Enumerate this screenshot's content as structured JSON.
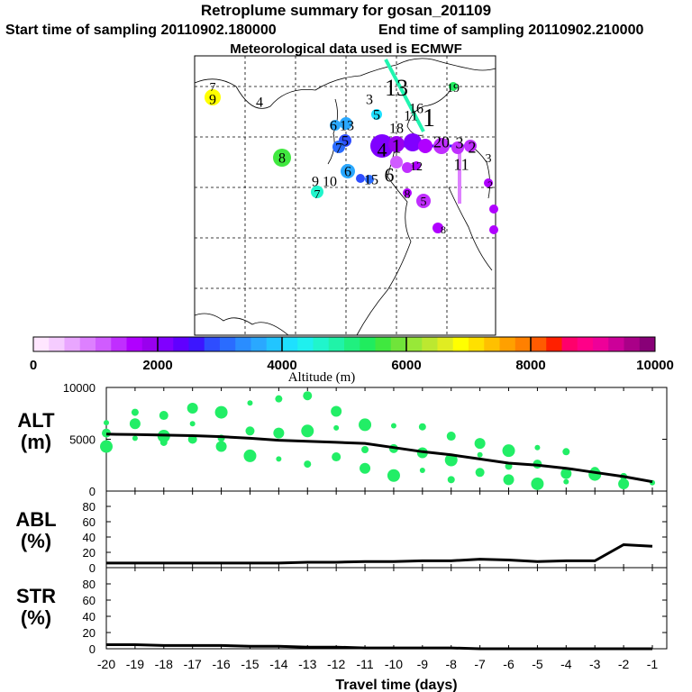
{
  "header": {
    "title": "Retroplume summary for gosan_201109",
    "start_time": "Start time of sampling 20110902.180000",
    "end_time": "End time of sampling 20110902.210000",
    "met_data": "Meteorological data used is ECMWF"
  },
  "colorbar": {
    "label": "Altitude (m)",
    "ticks": [
      "0",
      "2000",
      "4000",
      "6000",
      "8000",
      "10000"
    ],
    "colors": [
      "#ffe6ff",
      "#f5ccff",
      "#e9a6ff",
      "#dd80ff",
      "#d05cff",
      "#c02eff",
      "#b000ff",
      "#9900ee",
      "#8000ff",
      "#6000ff",
      "#3c16ff",
      "#2e4dff",
      "#2a6cff",
      "#2a8dff",
      "#2aa8ff",
      "#22c5ff",
      "#1ee0ff",
      "#1ff0ee",
      "#20f5cc",
      "#20f3a8",
      "#20f07f",
      "#20ec5e",
      "#40e83f",
      "#70e43a",
      "#98e838",
      "#bce830",
      "#e0ec22",
      "#ffff00",
      "#ffe000",
      "#ffc000",
      "#ffa000",
      "#ff8000",
      "#ff5b00",
      "#ff2000",
      "#ff006b",
      "#ff0088",
      "#ee0099",
      "#cc0099",
      "#aa0088",
      "#880077"
    ]
  },
  "map": {
    "labels": [
      {
        "text": "7",
        "color": "#000000"
      },
      {
        "text": "9",
        "color": "#000000"
      },
      {
        "text": "4",
        "color": "#000000"
      },
      {
        "text": "3",
        "color": "#000000"
      },
      {
        "text": "5",
        "color": "#000000"
      },
      {
        "text": "13",
        "color": "#000000"
      },
      {
        "text": "16",
        "color": "#000000"
      },
      {
        "text": "1",
        "color": "#000000"
      },
      {
        "text": "19",
        "color": "#000000"
      },
      {
        "text": "6",
        "color": "#000000"
      },
      {
        "text": "13",
        "color": "#000000"
      },
      {
        "text": "18",
        "color": "#000000"
      },
      {
        "text": "11",
        "color": "#000000"
      },
      {
        "text": "5",
        "color": "#000000"
      },
      {
        "text": "7",
        "color": "#000000"
      },
      {
        "text": "4",
        "color": "#000000"
      },
      {
        "text": "1",
        "color": "#000000"
      },
      {
        "text": "20",
        "color": "#000000"
      },
      {
        "text": "3",
        "color": "#000000"
      },
      {
        "text": "2",
        "color": "#000000"
      },
      {
        "text": "8",
        "color": "#000000"
      },
      {
        "text": "6",
        "color": "#000000"
      },
      {
        "text": "3",
        "color": "#000000"
      },
      {
        "text": "11",
        "color": "#000000"
      },
      {
        "text": "12",
        "color": "#000000"
      },
      {
        "text": "8",
        "color": "#000000"
      },
      {
        "text": "9",
        "color": "#000000"
      },
      {
        "text": "10",
        "color": "#000000"
      },
      {
        "text": "15",
        "color": "#000000"
      },
      {
        "text": "6",
        "color": "#000000"
      },
      {
        "text": "8",
        "color": "#000000"
      },
      {
        "text": "5",
        "color": "#000000"
      },
      {
        "text": "7",
        "color": "#000000"
      },
      {
        "text": "2",
        "color": "#000000"
      }
    ]
  },
  "chart_data": [
    {
      "type": "scatter",
      "panel": "ALT",
      "ylabel": "ALT\n(m)",
      "ylim": [
        0,
        10000
      ],
      "yticks": [
        "0",
        "5000",
        "10000"
      ],
      "xlim": [
        -20,
        -1
      ],
      "median_line": {
        "x": [
          -20,
          -19,
          -18,
          -17,
          -16,
          -15,
          -14,
          -13,
          -12,
          -11,
          -10,
          -9,
          -8,
          -7,
          -6,
          -5,
          -4,
          -3,
          -2,
          -1
        ],
        "y": [
          5500,
          5450,
          5400,
          5350,
          5250,
          5100,
          4900,
          4800,
          4700,
          4600,
          4200,
          3800,
          3500,
          3100,
          2700,
          2500,
          2200,
          1800,
          1400,
          900
        ]
      },
      "points": [
        {
          "x": -20,
          "y": 6600
        },
        {
          "x": -20,
          "y": 5600
        },
        {
          "x": -20,
          "y": 4300
        },
        {
          "x": -19,
          "y": 7600
        },
        {
          "x": -19,
          "y": 6500
        },
        {
          "x": -19,
          "y": 5100
        },
        {
          "x": -18,
          "y": 7300
        },
        {
          "x": -18,
          "y": 5300
        },
        {
          "x": -18,
          "y": 4700
        },
        {
          "x": -17,
          "y": 8000
        },
        {
          "x": -17,
          "y": 6500
        },
        {
          "x": -17,
          "y": 5000
        },
        {
          "x": -16,
          "y": 7600
        },
        {
          "x": -16,
          "y": 5100
        },
        {
          "x": -16,
          "y": 4300
        },
        {
          "x": -15,
          "y": 8500
        },
        {
          "x": -15,
          "y": 5800
        },
        {
          "x": -15,
          "y": 3400
        },
        {
          "x": -14,
          "y": 8900
        },
        {
          "x": -14,
          "y": 5600
        },
        {
          "x": -14,
          "y": 3100
        },
        {
          "x": -13,
          "y": 9200
        },
        {
          "x": -13,
          "y": 5800
        },
        {
          "x": -13,
          "y": 2600
        },
        {
          "x": -12,
          "y": 7700
        },
        {
          "x": -12,
          "y": 6100
        },
        {
          "x": -12,
          "y": 3300
        },
        {
          "x": -11,
          "y": 6400
        },
        {
          "x": -11,
          "y": 4000
        },
        {
          "x": -11,
          "y": 2200
        },
        {
          "x": -10,
          "y": 6300
        },
        {
          "x": -10,
          "y": 4100
        },
        {
          "x": -10,
          "y": 1500
        },
        {
          "x": -9,
          "y": 6200
        },
        {
          "x": -9,
          "y": 3700
        },
        {
          "x": -9,
          "y": 2000
        },
        {
          "x": -8,
          "y": 5300
        },
        {
          "x": -8,
          "y": 3000
        },
        {
          "x": -8,
          "y": 1100
        },
        {
          "x": -7,
          "y": 4600
        },
        {
          "x": -7,
          "y": 3500
        },
        {
          "x": -7,
          "y": 1800
        },
        {
          "x": -6,
          "y": 3900
        },
        {
          "x": -6,
          "y": 2400
        },
        {
          "x": -6,
          "y": 1100
        },
        {
          "x": -5,
          "y": 4200
        },
        {
          "x": -5,
          "y": 2600
        },
        {
          "x": -5,
          "y": 700
        },
        {
          "x": -4,
          "y": 3800
        },
        {
          "x": -4,
          "y": 1700
        },
        {
          "x": -4,
          "y": 900
        },
        {
          "x": -3,
          "y": 1900
        },
        {
          "x": -3,
          "y": 1600
        },
        {
          "x": -2,
          "y": 1400
        },
        {
          "x": -2,
          "y": 700
        },
        {
          "x": -1,
          "y": 800
        }
      ]
    },
    {
      "type": "line",
      "panel": "ABL",
      "ylabel": "ABL\n(%)",
      "ylim": [
        0,
        100
      ],
      "yticks": [
        "0",
        "20",
        "40",
        "60",
        "80"
      ],
      "x": [
        -20,
        -19,
        -18,
        -17,
        -16,
        -15,
        -14,
        -13,
        -12,
        -11,
        -10,
        -9,
        -8,
        -7,
        -6,
        -5,
        -4,
        -3,
        -2,
        -1
      ],
      "y": [
        6,
        6,
        6,
        6,
        6,
        6,
        6,
        7,
        7,
        8,
        8,
        9,
        9,
        11,
        10,
        8,
        9,
        9,
        30,
        28
      ]
    },
    {
      "type": "line",
      "panel": "STR",
      "ylabel": "STR\n(%)",
      "ylim": [
        0,
        100
      ],
      "yticks": [
        "0",
        "20",
        "40",
        "60",
        "80"
      ],
      "x": [
        -20,
        -19,
        -18,
        -17,
        -16,
        -15,
        -14,
        -13,
        -12,
        -11,
        -10,
        -9,
        -8,
        -7,
        -6,
        -5,
        -4,
        -3,
        -2,
        -1
      ],
      "y": [
        5,
        5,
        4,
        4,
        4,
        3,
        3,
        2,
        2,
        1,
        1,
        1,
        1,
        0,
        0,
        0,
        0,
        0,
        0,
        0
      ],
      "xlabel": "Travel time (days)",
      "xticks": [
        "-20",
        "-19",
        "-18",
        "-17",
        "-16",
        "-15",
        "-14",
        "-13",
        "-12",
        "-11",
        "-10",
        "-9",
        "-8",
        "-7",
        "-6",
        "-5",
        "-4",
        "-3",
        "-2",
        "-1"
      ]
    }
  ]
}
